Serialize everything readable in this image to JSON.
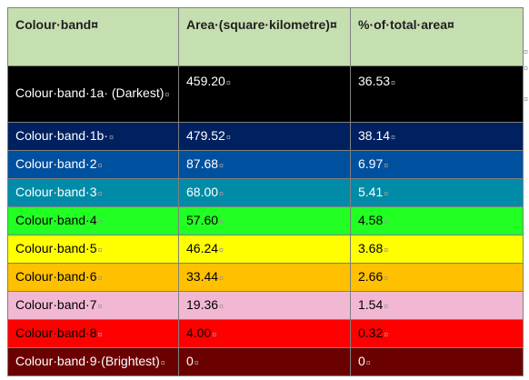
{
  "table": {
    "headers": [
      "Colour·band¤",
      "Area·(square·kilometre)¤",
      "%·of·total·area¤"
    ],
    "rows": [
      {
        "band": "Colour·band·1a· (Darkest)",
        "area": "459.20",
        "percent": "36.53",
        "bg": "#000000",
        "fg": "#ffffff"
      },
      {
        "band": "Colour·band·1b·",
        "area": "479.52",
        "percent": "38.14",
        "bg": "#002060",
        "fg": "#ffffff"
      },
      {
        "band": "Colour·band·2",
        "area": "87.68",
        "percent": "6.97",
        "bg": "#0050a0",
        "fg": "#ffffff"
      },
      {
        "band": "Colour·band·3",
        "area": "68.00",
        "percent": "5.41",
        "bg": "#008ca8",
        "fg": "#ffffff"
      },
      {
        "band": "Colour·band·4",
        "area": "57.60",
        "percent": "4.58",
        "bg": "#22ff22",
        "fg": "#000000"
      },
      {
        "band": "Colour·band·5",
        "area": "46.24",
        "percent": "3.68",
        "bg": "#ffff00",
        "fg": "#000000"
      },
      {
        "band": "Colour·band·6",
        "area": "33.44",
        "percent": "2.66",
        "bg": "#ffc000",
        "fg": "#000000"
      },
      {
        "band": "Colour·band·7",
        "area": "19.36",
        "percent": "1.54",
        "bg": "#f2b8d3",
        "fg": "#000000"
      },
      {
        "band": "Colour·band·8",
        "area": "4.00",
        "percent": "0.32",
        "bg": "#ff0000",
        "fg": "#000000"
      },
      {
        "band": "Colour·band·9·(Brightest)",
        "area": "0",
        "percent": "0",
        "bg": "#6b0000",
        "fg": "#ffffff"
      }
    ]
  }
}
